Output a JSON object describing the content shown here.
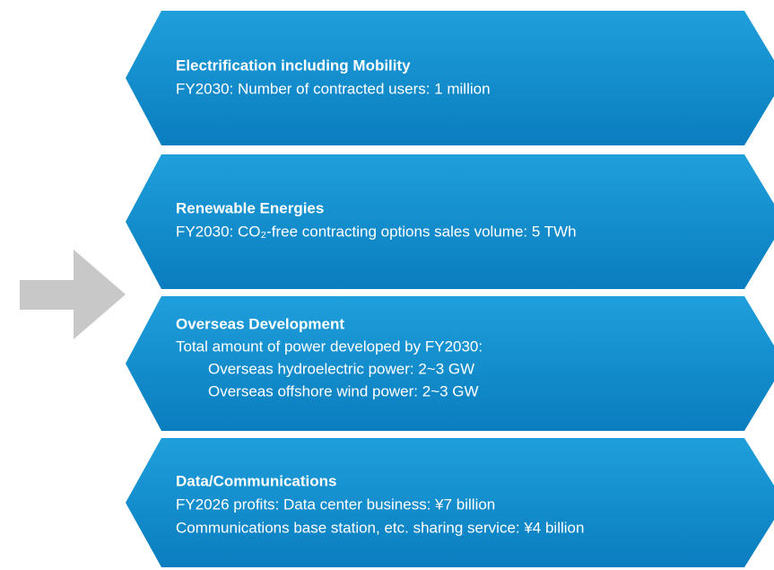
{
  "blocks": [
    {
      "title": "Electrification including Mobility",
      "lines": [
        "FY2030: Number of contracted users: 1 million"
      ]
    },
    {
      "title": "Renewable Energies",
      "lines": [
        "FY2030: CO₂-free contracting options sales volume: 5 TWh"
      ]
    },
    {
      "title": "Overseas Development",
      "lines": [
        "Total amount of power developed by FY2030:",
        "Overseas hydroelectric power: 2~3 GW",
        "Overseas offshore wind power: 2~3 GW"
      ]
    },
    {
      "title": "Data/Communications",
      "lines": [
        "FY2026 profits: Data center business: ¥7 billion",
        "Communications base station, etc. sharing service: ¥4 billion"
      ]
    }
  ]
}
